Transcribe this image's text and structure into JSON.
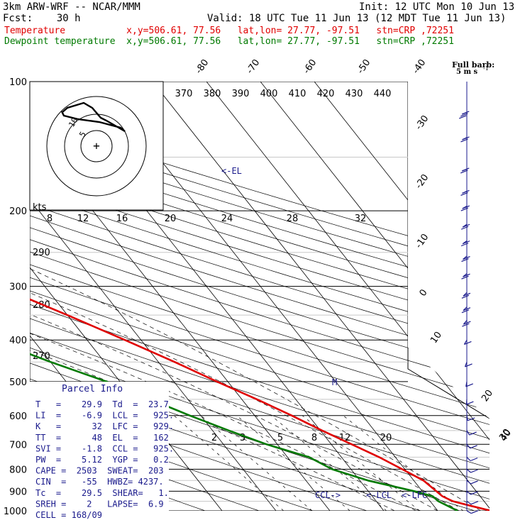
{
  "header": {
    "model": "3km ARW-WRF -- NCAR/MMM",
    "forecast": "Fcst:    30 h",
    "init": "Init: 12 UTC Mon 10 Jun 13",
    "valid": "Valid: 18 UTC Tue 11 Jun 13 (12 MDT Tue 11 Jun 13)",
    "temperature_row": "Temperature           x,y=506.61, 77.56   lat,lon= 27.77, -97.51   stn=CRP ,72251",
    "dewpoint_row": "Dewpoint temperature  x,y=506.61, 77.56   lat,lon= 27.77, -97.51   stn=CRP ,72251"
  },
  "colors": {
    "temperature": "#e00000",
    "dewpoint": "#007a00",
    "wind": "#1a1a8c",
    "parcel_text": "#1a1a8c"
  },
  "barb_legend": {
    "title": "Full barb:",
    "value": "5 m s",
    "superscript": "-1"
  },
  "chart_data": {
    "type": "line",
    "subtype": "skew-T log-p sounding",
    "pressure_axis": {
      "label": "",
      "log_scale": true,
      "ticks": [
        100,
        200,
        300,
        400,
        500,
        600,
        700,
        800,
        900,
        1000
      ],
      "range": [
        1000,
        100
      ]
    },
    "temperature_ticks": [
      "-80",
      "-70",
      "-60",
      "-50",
      "-40",
      "-30",
      "-20",
      "-10",
      "0",
      "10",
      "20",
      "30",
      "40"
    ],
    "theta_e_labels": [
      "370",
      "380",
      "390",
      "400",
      "410",
      "420",
      "430",
      "440"
    ],
    "isotherm_aux_labels": [
      "290",
      "280",
      "270"
    ],
    "mixing_ratio_labels": [
      "2",
      "3",
      "5",
      "8",
      "12",
      "20"
    ],
    "series": [
      {
        "name": "Temperature",
        "points": [
          {
            "p": 1000,
            "t": 29.9
          },
          {
            "p": 975,
            "t": 27.0
          },
          {
            "p": 950,
            "t": 24.2
          },
          {
            "p": 925,
            "t": 23.0
          },
          {
            "p": 900,
            "t": 22.6
          },
          {
            "p": 850,
            "t": 21.8
          },
          {
            "p": 800,
            "t": 19.5
          },
          {
            "p": 750,
            "t": 17.0
          },
          {
            "p": 700,
            "t": 13.8
          },
          {
            "p": 650,
            "t": 10.3
          },
          {
            "p": 600,
            "t": 6.9
          },
          {
            "p": 550,
            "t": 2.8
          },
          {
            "p": 500,
            "t": -2.0
          },
          {
            "p": 450,
            "t": -7.0
          },
          {
            "p": 400,
            "t": -13.0
          },
          {
            "p": 350,
            "t": -20.0
          },
          {
            "p": 300,
            "t": -28.5
          },
          {
            "p": 250,
            "t": -39.0
          },
          {
            "p": 220,
            "t": -46.0
          },
          {
            "p": 200,
            "t": -51.5
          },
          {
            "p": 175,
            "t": -59.0
          },
          {
            "p": 150,
            "t": -66.5
          },
          {
            "p": 135,
            "t": -71.0
          },
          {
            "p": 125,
            "t": -73.0
          },
          {
            "p": 112,
            "t": -72.5
          },
          {
            "p": 100,
            "t": -71.0
          }
        ]
      },
      {
        "name": "Dewpoint temperature",
        "points": [
          {
            "p": 1000,
            "t": 23.7
          },
          {
            "p": 950,
            "t": 21.5
          },
          {
            "p": 925,
            "t": 21.2
          },
          {
            "p": 900,
            "t": 18.5
          },
          {
            "p": 850,
            "t": 11.5
          },
          {
            "p": 800,
            "t": 6.5
          },
          {
            "p": 750,
            "t": 4.0
          },
          {
            "p": 700,
            "t": -2.0
          },
          {
            "p": 650,
            "t": -7.0
          },
          {
            "p": 600,
            "t": -12.0
          },
          {
            "p": 550,
            "t": -17.0
          },
          {
            "p": 500,
            "t": -22.5
          },
          {
            "p": 450,
            "t": -30.0
          },
          {
            "p": 400,
            "t": -37.5
          },
          {
            "p": 350,
            "t": -48.0
          },
          {
            "p": 320,
            "t": -52.0
          },
          {
            "p": 300,
            "t": -54.0
          },
          {
            "p": 280,
            "t": -55.5
          },
          {
            "p": 250,
            "t": -63.5
          },
          {
            "p": 220,
            "t": -71.0
          },
          {
            "p": 200,
            "t": -81.0
          },
          {
            "p": 185,
            "t": -90.0
          },
          {
            "p": 165,
            "t": -92.0
          },
          {
            "p": 150,
            "t": -86.0
          },
          {
            "p": 130,
            "t": -87.0
          },
          {
            "p": 112,
            "t": -89.0
          },
          {
            "p": 100,
            "t": -89.0
          }
        ]
      }
    ],
    "annotations": [
      {
        "text": "<-EL",
        "p": 162
      },
      {
        "text": "CCL->",
        "p": 925
      },
      {
        "text": "<-LCL",
        "p": 925
      },
      {
        "text": "<-LFC",
        "p": 929
      }
    ],
    "wind_barbs": [
      {
        "p": 118,
        "dir": 250,
        "spd": 15
      },
      {
        "p": 135,
        "dir": 245,
        "spd": 12
      },
      {
        "p": 160,
        "dir": 250,
        "spd": 10
      },
      {
        "p": 180,
        "dir": 245,
        "spd": 10
      },
      {
        "p": 195,
        "dir": 240,
        "spd": 10
      },
      {
        "p": 215,
        "dir": 235,
        "spd": 10
      },
      {
        "p": 235,
        "dir": 235,
        "spd": 10
      },
      {
        "p": 255,
        "dir": 230,
        "spd": 10
      },
      {
        "p": 280,
        "dir": 230,
        "spd": 10
      },
      {
        "p": 310,
        "dir": 225,
        "spd": 10
      },
      {
        "p": 335,
        "dir": 225,
        "spd": 10
      },
      {
        "p": 360,
        "dir": 220,
        "spd": 10
      },
      {
        "p": 400,
        "dir": 210,
        "spd": 5
      },
      {
        "p": 450,
        "dir": 200,
        "spd": 5
      },
      {
        "p": 500,
        "dir": 190,
        "spd": 5
      },
      {
        "p": 550,
        "dir": 185,
        "spd": 5
      },
      {
        "p": 600,
        "dir": 170,
        "spd": 5
      },
      {
        "p": 650,
        "dir": 150,
        "spd": 5
      },
      {
        "p": 700,
        "dir": 140,
        "spd": 5
      },
      {
        "p": 750,
        "dir": 135,
        "spd": 5
      },
      {
        "p": 800,
        "dir": 130,
        "spd": 5
      },
      {
        "p": 850,
        "dir": 130,
        "spd": 5
      },
      {
        "p": 900,
        "dir": 130,
        "spd": 5
      },
      {
        "p": 950,
        "dir": 125,
        "spd": 5
      },
      {
        "p": 1000,
        "dir": 120,
        "spd": 5
      }
    ],
    "hodograph": {
      "units": "kts",
      "scale_labels": [
        "8",
        "12",
        "16",
        "20",
        "24",
        "28",
        "32"
      ],
      "ring_labels": [
        "5",
        "10"
      ]
    }
  },
  "parcel_info": {
    "title": "Parcel Info",
    "lines": [
      "T   =    29.9  Td  =  23.7",
      "LI  =    -6.9  LCL =   925.",
      "K   =      32  LFC =   929.",
      "TT  =      48  EL  =   162",
      "SVI =    -1.8  CCL =   925.",
      "PW  =    5.12  YGP =   0.2",
      "CAPE =  2503  SWEAT=  203",
      "CIN  =   -55  HWBZ= 4237.",
      "Tc  =    29.5  SHEAR=   1.",
      "SREH =    2   LAPSE=  6.9",
      "CELL = 168/09"
    ]
  }
}
